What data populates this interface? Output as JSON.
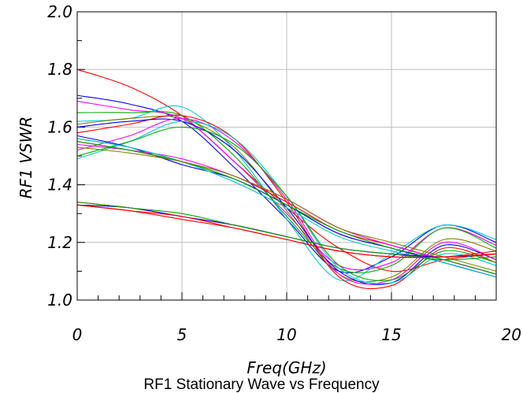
{
  "chart_data": {
    "type": "line",
    "title": "RF1 Stationary Wave vs Frequency",
    "xlabel": "Freq(GHz)",
    "ylabel": "RF1  VSWR",
    "xlim": [
      0,
      20
    ],
    "ylim": [
      1.0,
      2.0
    ],
    "x_ticks": [
      "0",
      "5",
      "10",
      "15",
      "20"
    ],
    "y_ticks": [
      "1.0",
      "1.2",
      "1.4",
      "1.6",
      "1.8",
      "2.0"
    ],
    "grid": true,
    "x": [
      0,
      2.5,
      5,
      7.5,
      10,
      12.5,
      15,
      17.5,
      20
    ],
    "series": [
      {
        "color": "#ff0000",
        "values": [
          1.8,
          1.74,
          1.64,
          1.48,
          1.32,
          1.18,
          1.1,
          1.14,
          1.16
        ]
      },
      {
        "color": "#0000ff",
        "values": [
          1.71,
          1.68,
          1.62,
          1.46,
          1.28,
          1.1,
          1.15,
          1.26,
          1.2
        ]
      },
      {
        "color": "#ff00ff",
        "values": [
          1.69,
          1.66,
          1.63,
          1.48,
          1.3,
          1.12,
          1.13,
          1.25,
          1.19
        ]
      },
      {
        "color": "#00cccc",
        "values": [
          1.62,
          1.63,
          1.67,
          1.52,
          1.28,
          1.07,
          1.16,
          1.26,
          1.21
        ]
      },
      {
        "color": "#00aa00",
        "values": [
          1.65,
          1.65,
          1.64,
          1.5,
          1.29,
          1.11,
          1.12,
          1.25,
          1.18
        ]
      },
      {
        "color": "#808000",
        "values": [
          1.61,
          1.63,
          1.63,
          1.53,
          1.31,
          1.09,
          1.08,
          1.21,
          1.17
        ]
      },
      {
        "color": "#ff0000",
        "values": [
          1.58,
          1.61,
          1.64,
          1.56,
          1.34,
          1.08,
          1.05,
          1.18,
          1.13
        ]
      },
      {
        "color": "#0000ff",
        "values": [
          1.6,
          1.62,
          1.62,
          1.52,
          1.32,
          1.1,
          1.06,
          1.19,
          1.14
        ]
      },
      {
        "color": "#ff00ff",
        "values": [
          1.52,
          1.57,
          1.63,
          1.55,
          1.35,
          1.09,
          1.07,
          1.2,
          1.14
        ]
      },
      {
        "color": "#00cccc",
        "values": [
          1.49,
          1.55,
          1.62,
          1.56,
          1.36,
          1.11,
          1.06,
          1.16,
          1.12
        ]
      },
      {
        "color": "#00aa00",
        "values": [
          1.5,
          1.55,
          1.6,
          1.54,
          1.36,
          1.12,
          1.07,
          1.17,
          1.13
        ]
      },
      {
        "color": "#808000",
        "values": [
          1.56,
          1.53,
          1.48,
          1.42,
          1.33,
          1.23,
          1.18,
          1.13,
          1.08
        ]
      },
      {
        "color": "#ff0000",
        "values": [
          1.55,
          1.52,
          1.48,
          1.43,
          1.34,
          1.24,
          1.19,
          1.14,
          1.09
        ]
      },
      {
        "color": "#0000ff",
        "values": [
          1.57,
          1.53,
          1.47,
          1.42,
          1.33,
          1.23,
          1.18,
          1.13,
          1.08
        ]
      },
      {
        "color": "#ff00ff",
        "values": [
          1.54,
          1.52,
          1.49,
          1.43,
          1.35,
          1.25,
          1.19,
          1.14,
          1.09
        ]
      },
      {
        "color": "#00cccc",
        "values": [
          1.56,
          1.53,
          1.48,
          1.41,
          1.32,
          1.22,
          1.17,
          1.13,
          1.08
        ]
      },
      {
        "color": "#00aa00",
        "values": [
          1.55,
          1.52,
          1.48,
          1.42,
          1.33,
          1.24,
          1.18,
          1.14,
          1.09
        ]
      },
      {
        "color": "#808000",
        "values": [
          1.53,
          1.51,
          1.48,
          1.43,
          1.35,
          1.25,
          1.2,
          1.15,
          1.1
        ]
      },
      {
        "color": "#ff0000",
        "values": [
          1.34,
          1.32,
          1.29,
          1.26,
          1.22,
          1.18,
          1.16,
          1.15,
          1.16
        ]
      },
      {
        "color": "#0000ff",
        "values": [
          1.33,
          1.32,
          1.29,
          1.26,
          1.22,
          1.18,
          1.16,
          1.15,
          1.16
        ]
      },
      {
        "color": "#ff0000",
        "values": [
          1.33,
          1.31,
          1.29,
          1.25,
          1.21,
          1.17,
          1.15,
          1.15,
          1.17
        ]
      },
      {
        "color": "#00aa00",
        "values": [
          1.34,
          1.32,
          1.3,
          1.26,
          1.22,
          1.18,
          1.16,
          1.14,
          1.15
        ]
      },
      {
        "color": "#ff0000",
        "values": [
          1.33,
          1.31,
          1.28,
          1.25,
          1.21,
          1.17,
          1.15,
          1.15,
          1.16
        ]
      }
    ]
  }
}
